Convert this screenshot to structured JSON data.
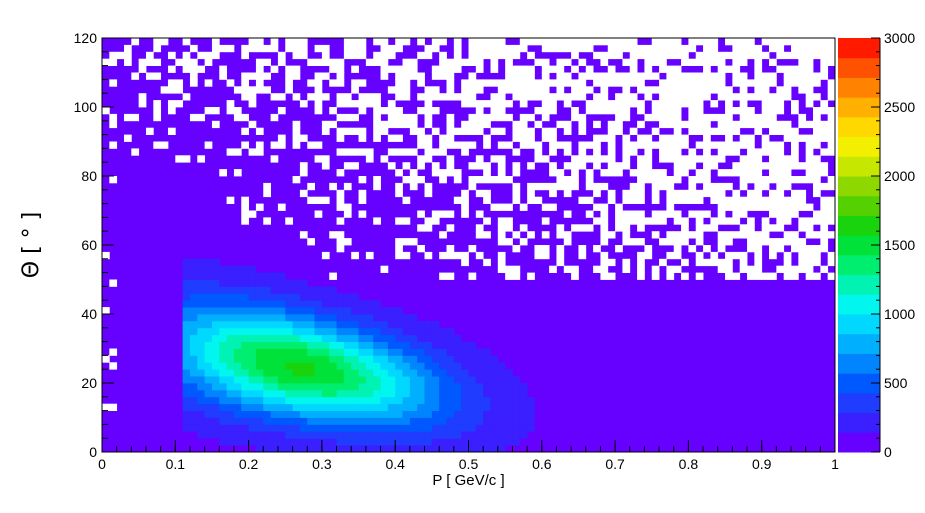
{
  "chart_data": {
    "type": "heatmap",
    "title": "",
    "xlabel": "P [ GeV/c ]",
    "ylabel": "Θ [ ° ]",
    "xlim": [
      0,
      1
    ],
    "ylim": [
      0,
      120
    ],
    "zlim": [
      0,
      3000
    ],
    "x_ticks": [
      "0",
      "0.1",
      "0.2",
      "0.3",
      "0.4",
      "0.5",
      "0.6",
      "0.7",
      "0.8",
      "0.9",
      "1"
    ],
    "y_ticks": [
      "0",
      "20",
      "40",
      "60",
      "80",
      "100",
      "120"
    ],
    "colorbar_ticks": [
      "0",
      "500",
      "1000",
      "1500",
      "2000",
      "2500",
      "3000"
    ],
    "bins": {
      "nx": 100,
      "ny": 60,
      "x_bin_width": 0.01,
      "y_bin_width": 2
    },
    "colormap": [
      "#6600ff",
      "#3a1fff",
      "#1f3cff",
      "#0059ff",
      "#0085ff",
      "#00b0ff",
      "#00d8ff",
      "#00f6ee",
      "#00f3b2",
      "#00ee70",
      "#00e23a",
      "#19d40c",
      "#55d000",
      "#8ed800",
      "#c6e800",
      "#f2f000",
      "#ffd800",
      "#ffb000",
      "#ff8200",
      "#ff5200",
      "#ff1a00"
    ],
    "peak": {
      "x": 0.26,
      "y": 23,
      "value": 1600
    },
    "description_of_density": "Dense band from P 0.12-0.60 and Theta 5-50 deg peaking near P 0.26, Theta 23 deg; low counts fill the rest; sparse empty bins for Theta above 50 deg."
  }
}
